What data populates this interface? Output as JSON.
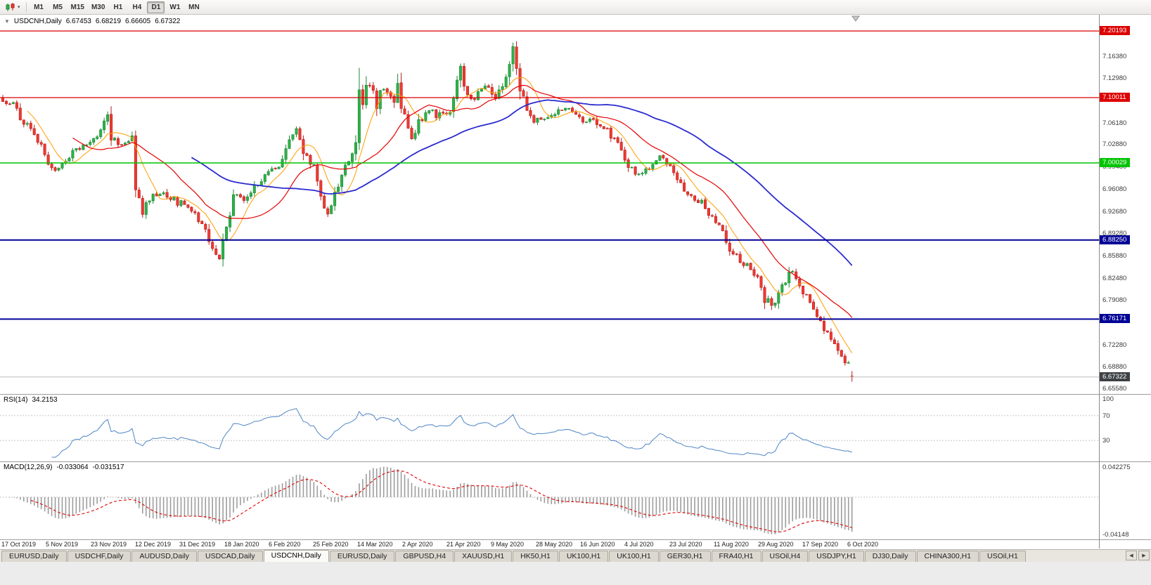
{
  "toolbar": {
    "chart_type_icon": "candlestick-chart-icon",
    "timeframes": [
      "M1",
      "M5",
      "M15",
      "M30",
      "H1",
      "H4",
      "D1",
      "W1",
      "MN"
    ],
    "active_timeframe": "D1",
    "dropdown_caret": "▾"
  },
  "chart": {
    "collapse_arrow": "▼",
    "symbol": "USDCNH,Daily",
    "open": "6.67453",
    "high": "6.68219",
    "low": "6.66605",
    "close": "6.67322"
  },
  "price_axis": {
    "ticks": [
      "7.16380",
      "7.12980",
      "7.06180",
      "7.02880",
      "6.99480",
      "6.96080",
      "6.92680",
      "6.89280",
      "6.85880",
      "6.82480",
      "6.79080",
      "6.72280",
      "6.68880",
      "6.65580"
    ],
    "badges": [
      {
        "label": "7.20193",
        "price": 7.20193,
        "color": "#dd0000"
      },
      {
        "label": "7.10011",
        "price": 7.10011,
        "color": "#dd0000"
      },
      {
        "label": "7.00029",
        "price": 7.00029,
        "color": "#00c400"
      },
      {
        "label": "6.88250",
        "price": 6.8825,
        "color": "#000096"
      },
      {
        "label": "6.76171",
        "price": 6.76171,
        "color": "#000096"
      },
      {
        "label": "6.67322",
        "price": 6.67322,
        "color": "#3f4245"
      }
    ]
  },
  "date_axis": [
    "17 Oct 2019",
    "5 Nov 2019",
    "23 Nov 2019",
    "12 Dec 2019",
    "31 Dec 2019",
    "18 Jan 2020",
    "6 Feb 2020",
    "25 Feb 2020",
    "14 Mar 2020",
    "2 Apr 2020",
    "21 Apr 2020",
    "9 May 2020",
    "28 May 2020",
    "16 Jun 2020",
    "4 Jul 2020",
    "23 Jul 2020",
    "11 Aug 2020",
    "29 Aug 2020",
    "17 Sep 2020",
    "6 Oct 2020"
  ],
  "rsi_panel": {
    "label": "RSI(14)",
    "value": "34.2153",
    "ticks": [
      "100",
      "70",
      "30"
    ],
    "levels": [
      70,
      30
    ],
    "line_color": "#4f86c6"
  },
  "macd_panel": {
    "label": "MACD(12,26,9)",
    "value_main": "-0.033064",
    "value_signal": "-0.031517",
    "tick_top": "0.042275",
    "tick_bottom": "-0.04148",
    "histogram_color": "#9d9d9d",
    "signal_color": "#e00000"
  },
  "tabs": {
    "items": [
      "EURUSD,Daily",
      "USDCHF,Daily",
      "AUDUSD,Daily",
      "USDCAD,Daily",
      "USDCNH,Daily",
      "EURUSD,Daily",
      "GBPUSD,H4",
      "XAUUSD,H1",
      "HK50,H1",
      "UK100,H1",
      "UK100,H1",
      "GER30,H1",
      "FRA40,H1",
      "USOil,H4",
      "USDJPY,H1",
      "DJ30,Daily",
      "CHINA300,H1",
      "USOil,H1"
    ],
    "active_index": 4,
    "nav_left": "◀",
    "nav_right": "▶"
  },
  "chart_data": {
    "type": "candlestick",
    "symbol": "USDCNH",
    "timeframe": "Daily",
    "visible_price_range": {
      "max": 7.2267,
      "min": 6.6473
    },
    "candle_count": 244,
    "last_candle": {
      "open": 6.67453,
      "high": 6.68219,
      "low": 6.66605,
      "close": 6.67322
    },
    "close_anchors": [
      [
        0,
        7.094
      ],
      [
        3,
        7.088
      ],
      [
        6,
        7.062
      ],
      [
        9,
        7.042
      ],
      [
        12,
        7.018
      ],
      [
        14,
        6.988
      ],
      [
        17,
        7.0
      ],
      [
        20,
        7.018
      ],
      [
        24,
        7.028
      ],
      [
        28,
        7.048
      ],
      [
        30,
        7.072
      ],
      [
        31,
        7.035
      ],
      [
        34,
        7.03
      ],
      [
        37,
        7.038
      ],
      [
        38,
        6.962
      ],
      [
        40,
        6.93
      ],
      [
        43,
        6.955
      ],
      [
        47,
        6.95
      ],
      [
        51,
        6.938
      ],
      [
        54,
        6.926
      ],
      [
        57,
        6.905
      ],
      [
        60,
        6.872
      ],
      [
        62,
        6.852
      ],
      [
        64,
        6.902
      ],
      [
        66,
        6.948
      ],
      [
        69,
        6.946
      ],
      [
        72,
        6.962
      ],
      [
        76,
        6.986
      ],
      [
        79,
        6.996
      ],
      [
        82,
        7.04
      ],
      [
        84,
        7.052
      ],
      [
        86,
        7.018
      ],
      [
        89,
        6.994
      ],
      [
        91,
        6.948
      ],
      [
        93,
        6.922
      ],
      [
        95,
        6.952
      ],
      [
        97,
        6.986
      ],
      [
        100,
        7.016
      ],
      [
        101,
        7.02
      ],
      [
        102,
        7.108
      ],
      [
        103,
        7.09
      ],
      [
        105,
        7.128
      ],
      [
        107,
        7.088
      ],
      [
        109,
        7.122
      ],
      [
        111,
        7.096
      ],
      [
        113,
        7.112
      ],
      [
        115,
        7.072
      ],
      [
        117,
        7.034
      ],
      [
        119,
        7.062
      ],
      [
        122,
        7.078
      ],
      [
        125,
        7.072
      ],
      [
        128,
        7.082
      ],
      [
        130,
        7.128
      ],
      [
        131,
        7.142
      ],
      [
        133,
        7.108
      ],
      [
        135,
        7.098
      ],
      [
        137,
        7.112
      ],
      [
        139,
        7.118
      ],
      [
        141,
        7.102
      ],
      [
        143,
        7.122
      ],
      [
        145,
        7.162
      ],
      [
        146,
        7.182
      ],
      [
        147,
        7.15
      ],
      [
        148,
        7.118
      ],
      [
        150,
        7.082
      ],
      [
        152,
        7.06
      ],
      [
        154,
        7.068
      ],
      [
        157,
        7.072
      ],
      [
        160,
        7.082
      ],
      [
        163,
        7.078
      ],
      [
        166,
        7.068
      ],
      [
        169,
        7.062
      ],
      [
        172,
        7.056
      ],
      [
        174,
        7.042
      ],
      [
        176,
        7.028
      ],
      [
        178,
        7.002
      ],
      [
        181,
        6.988
      ],
      [
        183,
        6.982
      ],
      [
        186,
        6.996
      ],
      [
        188,
        7.012
      ],
      [
        190,
        7.002
      ],
      [
        192,
        6.988
      ],
      [
        194,
        6.972
      ],
      [
        196,
        6.952
      ],
      [
        198,
        6.942
      ],
      [
        200,
        6.938
      ],
      [
        202,
        6.925
      ],
      [
        204,
        6.908
      ],
      [
        206,
        6.892
      ],
      [
        208,
        6.868
      ],
      [
        210,
        6.856
      ],
      [
        212,
        6.846
      ],
      [
        214,
        6.838
      ],
      [
        216,
        6.826
      ],
      [
        218,
        6.792
      ],
      [
        220,
        6.778
      ],
      [
        221,
        6.792
      ],
      [
        223,
        6.812
      ],
      [
        225,
        6.832
      ],
      [
        226,
        6.838
      ],
      [
        228,
        6.812
      ],
      [
        230,
        6.795
      ],
      [
        232,
        6.778
      ],
      [
        234,
        6.758
      ],
      [
        236,
        6.738
      ],
      [
        238,
        6.722
      ],
      [
        240,
        6.702
      ],
      [
        242,
        6.692
      ],
      [
        243,
        6.6732
      ]
    ],
    "candle_colors": {
      "up_fill": "#2eb24a",
      "up_stroke": "#1d8634",
      "down_fill": "#f03a30",
      "down_stroke": "#b71c1c"
    },
    "moving_averages": [
      {
        "period": 8,
        "color": "#ff9d00",
        "width": 1
      },
      {
        "period": 21,
        "color": "#e60000",
        "width": 1.2
      },
      {
        "period": 55,
        "color": "#2b2bd0",
        "width": 1.8
      }
    ],
    "horizontal_lines": [
      {
        "price": 7.20193,
        "color": "#dd0000",
        "width": 1.2
      },
      {
        "price": 7.10011,
        "color": "#dd0000",
        "width": 1.2
      },
      {
        "price": 7.00029,
        "color": "#00c400",
        "width": 1.6
      },
      {
        "price": 6.8825,
        "color": "#000096",
        "width": 2
      },
      {
        "price": 6.76171,
        "color": "#000096",
        "width": 2
      }
    ],
    "current_price": {
      "price": 6.67322,
      "line_color": "#bdbdbd"
    },
    "indicators": [
      {
        "name": "RSI",
        "period": 14,
        "last_value": 34.2153
      },
      {
        "name": "MACD",
        "fast": 12,
        "slow": 26,
        "signal": 9,
        "last_value": -0.033064,
        "last_signal": -0.031517
      }
    ]
  }
}
